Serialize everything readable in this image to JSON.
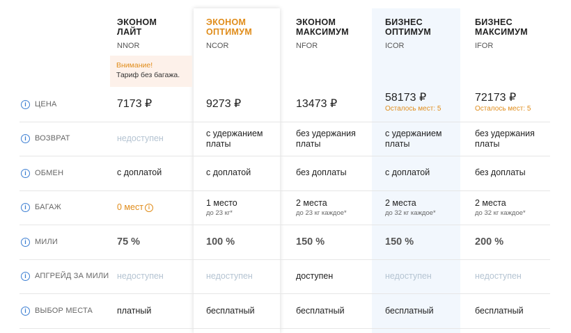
{
  "tariffs": [
    {
      "name_line1": "ЭКОНОМ",
      "name_line2": "ЛАЙТ",
      "code": "NNOR"
    },
    {
      "name_line1": "ЭКОНОМ",
      "name_line2": "ОПТИМУМ",
      "code": "NCOR"
    },
    {
      "name_line1": "ЭКОНОМ",
      "name_line2": "МАКСИМУМ",
      "code": "NFOR"
    },
    {
      "name_line1": "БИЗНЕС",
      "name_line2": "ОПТИМУМ",
      "code": "ICOR"
    },
    {
      "name_line1": "БИЗНЕС",
      "name_line2": "МАКСИМУМ",
      "code": "IFOR"
    }
  ],
  "warning": {
    "title": "Внимание!",
    "text": "Тариф без багажа."
  },
  "rows": {
    "price": {
      "label": "ЦЕНА",
      "values": [
        "7173 ₽",
        "9273 ₽",
        "13473 ₽",
        "58173 ₽",
        "72173 ₽"
      ],
      "seats_left": [
        "",
        "",
        "",
        "Осталось мест: 5",
        "Осталось мест: 5"
      ]
    },
    "refund": {
      "label": "ВОЗВРАТ",
      "values": [
        "недоступен",
        "с удержанием платы",
        "без удержания платы",
        "с удержанием платы",
        "без удержания платы"
      ]
    },
    "exchange": {
      "label": "ОБМЕН",
      "values": [
        "с доплатой",
        "с доплатой",
        "без доплаты",
        "с доплатой",
        "без доплаты"
      ]
    },
    "baggage": {
      "label": "БАГАЖ",
      "values": [
        "0 мест",
        "1 место",
        "2 места",
        "2 места",
        "2 места"
      ],
      "details": [
        "",
        "до 23 кг*",
        "до 23 кг каждое*",
        "до 32 кг каждое*",
        "до 32 кг каждое*"
      ]
    },
    "miles": {
      "label": "МИЛИ",
      "values": [
        "75 %",
        "100 %",
        "150 %",
        "150 %",
        "200 %"
      ]
    },
    "upgrade": {
      "label": "АПГРЕЙД ЗА МИЛИ",
      "values": [
        "недоступен",
        "недоступен",
        "доступен",
        "недоступен",
        "недоступен"
      ]
    },
    "seat": {
      "label": "ВЫБОР МЕСТА",
      "values": [
        "платный",
        "бесплатный",
        "бесплатный",
        "бесплатный",
        "бесплатный"
      ]
    }
  },
  "info_icon_glyph": "i",
  "colors": {
    "accent": "#e08c1a",
    "info": "#3a7dd2",
    "business_bg": "#f2f7fd",
    "warning_bg": "#fdf1ea"
  }
}
